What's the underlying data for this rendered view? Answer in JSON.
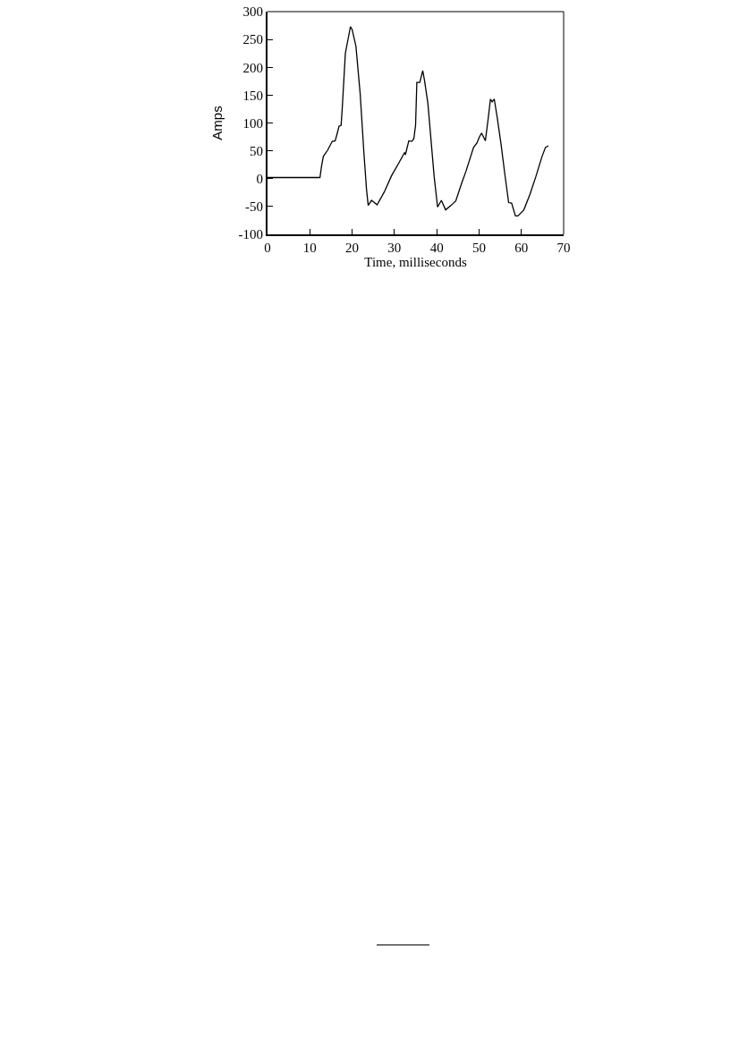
{
  "chart_data": {
    "type": "line",
    "xlabel": "Time, milliseconds",
    "ylabel": "Amps",
    "xlim": [
      0,
      70
    ],
    "xticks": [
      0,
      10,
      20,
      30,
      40,
      50,
      60,
      70
    ],
    "ylim": [
      -100,
      300
    ],
    "yticks": [
      -100,
      -50,
      0,
      50,
      100,
      150,
      200,
      250,
      300
    ],
    "grid": false,
    "marker": "none",
    "line_style": "solid",
    "series": [
      {
        "color": "#000000",
        "x": [
          0,
          12.4,
          12.8,
          13.2,
          14.2,
          15.3,
          16.0,
          16.5,
          16.9,
          17.4,
          17.7,
          18.4,
          19.0,
          19.6,
          20.0,
          20.9,
          21.9,
          22.8,
          23.4,
          23.8,
          24.6,
          25.9,
          27.6,
          29.3,
          31.1,
          32.4,
          32.6,
          33.4,
          34.1,
          34.6,
          35.0,
          35.3,
          36.0,
          36.7,
          37.1,
          37.9,
          38.5,
          39.4,
          40.2,
          41.1,
          42.1,
          43.4,
          44.5,
          45.9,
          46.9,
          48.7,
          49.5,
          50.1,
          50.6,
          51.5,
          52.2,
          52.7,
          53.1,
          53.6,
          54.3,
          55.2,
          56.1,
          57.0,
          57.7,
          58.6,
          59.2,
          60.6,
          62.0,
          63.4,
          64.9,
          65.7,
          66.4
        ],
        "values": [
          2,
          2,
          24,
          40,
          51,
          67,
          68,
          82,
          94,
          96,
          131,
          225,
          249,
          273,
          268,
          238,
          153,
          45,
          -19,
          -48,
          -39,
          -47,
          -24,
          5,
          29,
          47,
          43,
          68,
          67,
          72,
          96,
          173,
          173,
          194,
          177,
          136,
          83,
          3,
          -51,
          -39,
          -56,
          -48,
          -40,
          -8,
          13,
          56,
          64,
          75,
          82,
          68,
          110,
          143,
          138,
          143,
          110,
          62,
          8,
          -43,
          -44,
          -67,
          -67,
          -56,
          -29,
          3,
          40,
          56,
          59
        ]
      }
    ]
  }
}
